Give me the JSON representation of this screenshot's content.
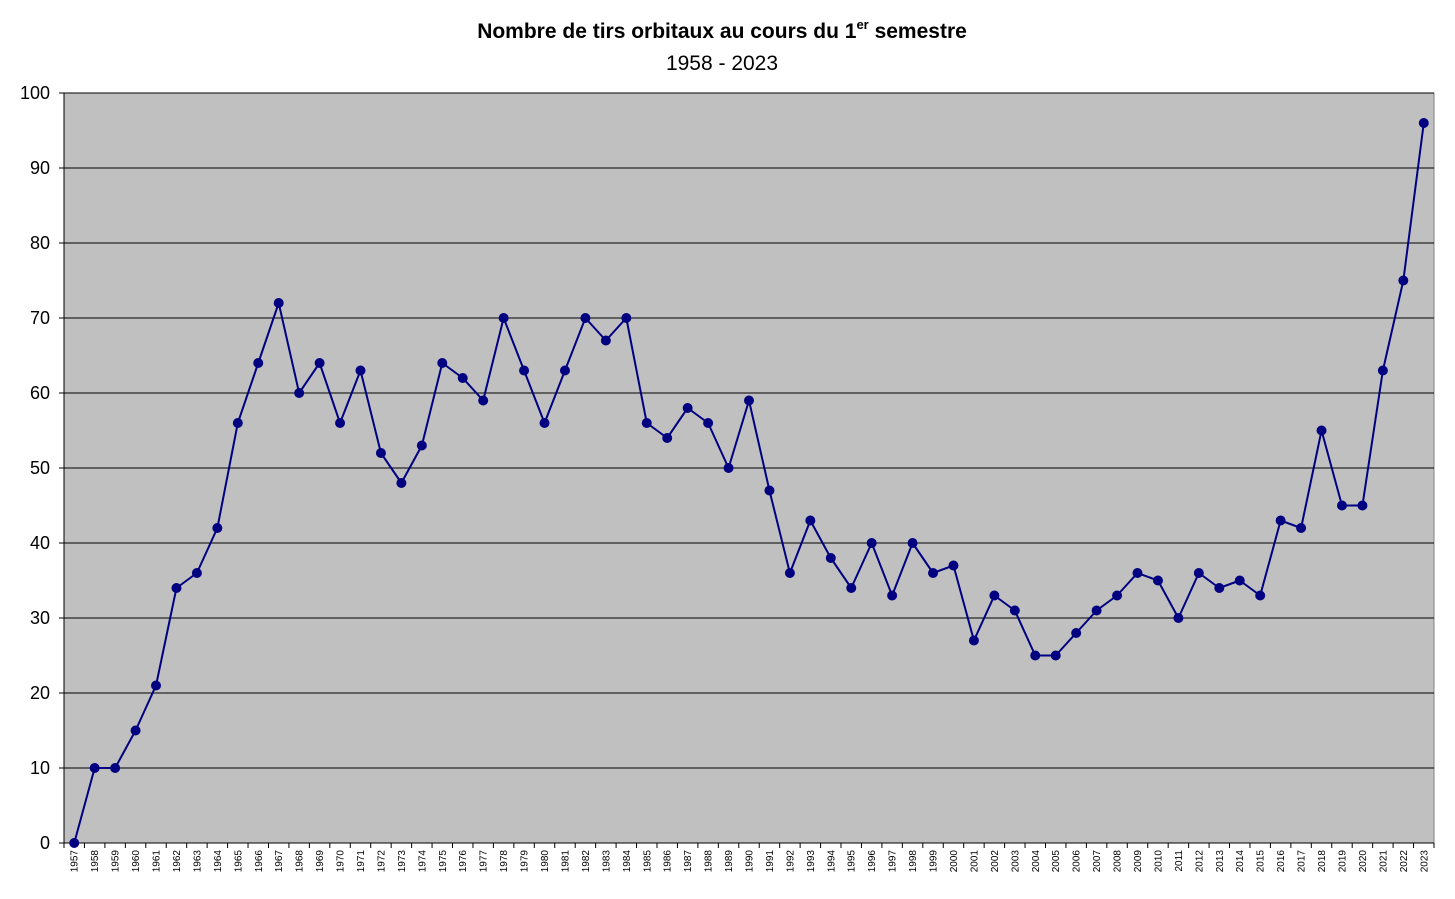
{
  "chart_data": {
    "type": "line",
    "title": {
      "main": "Nombre de tirs orbitaux au cours du 1",
      "superscript": "er",
      "after": " semestre"
    },
    "subtitle": "1958 - 2023",
    "xlabel": "",
    "ylabel": "",
    "ylim": [
      0,
      100
    ],
    "yticks": [
      0,
      10,
      20,
      30,
      40,
      50,
      60,
      70,
      80,
      90,
      100
    ],
    "grid": "horizontal",
    "legend": "none",
    "colors": {
      "plot_background": "#c0c0c0",
      "series": "#000080",
      "grid": "#000000"
    },
    "categories": [
      "1957",
      "1958",
      "1959",
      "1960",
      "1961",
      "1962",
      "1963",
      "1964",
      "1965",
      "1966",
      "1967",
      "1968",
      "1969",
      "1970",
      "1971",
      "1972",
      "1973",
      "1974",
      "1975",
      "1976",
      "1977",
      "1978",
      "1979",
      "1980",
      "1981",
      "1982",
      "1983",
      "1984",
      "1985",
      "1986",
      "1987",
      "1988",
      "1989",
      "1990",
      "1991",
      "1992",
      "1993",
      "1994",
      "1995",
      "1996",
      "1997",
      "1998",
      "1999",
      "2000",
      "2001",
      "2002",
      "2003",
      "2004",
      "2005",
      "2006",
      "2007",
      "2008",
      "2009",
      "2010",
      "2011",
      "2012",
      "2013",
      "2014",
      "2015",
      "2016",
      "2017",
      "2018",
      "2019",
      "2020",
      "2021",
      "2022",
      "2023"
    ],
    "series": [
      {
        "values": [
          0,
          10,
          10,
          15,
          21,
          34,
          36,
          42,
          56,
          64,
          72,
          60,
          64,
          56,
          63,
          52,
          48,
          53,
          64,
          62,
          59,
          70,
          63,
          56,
          63,
          70,
          67,
          70,
          56,
          54,
          58,
          56,
          50,
          59,
          47,
          36,
          43,
          38,
          34,
          40,
          33,
          40,
          36,
          37,
          27,
          33,
          31,
          25,
          25,
          28,
          31,
          33,
          36,
          35,
          30,
          36,
          34,
          35,
          33,
          43,
          42,
          55,
          45,
          45,
          63,
          75,
          96
        ]
      }
    ]
  }
}
